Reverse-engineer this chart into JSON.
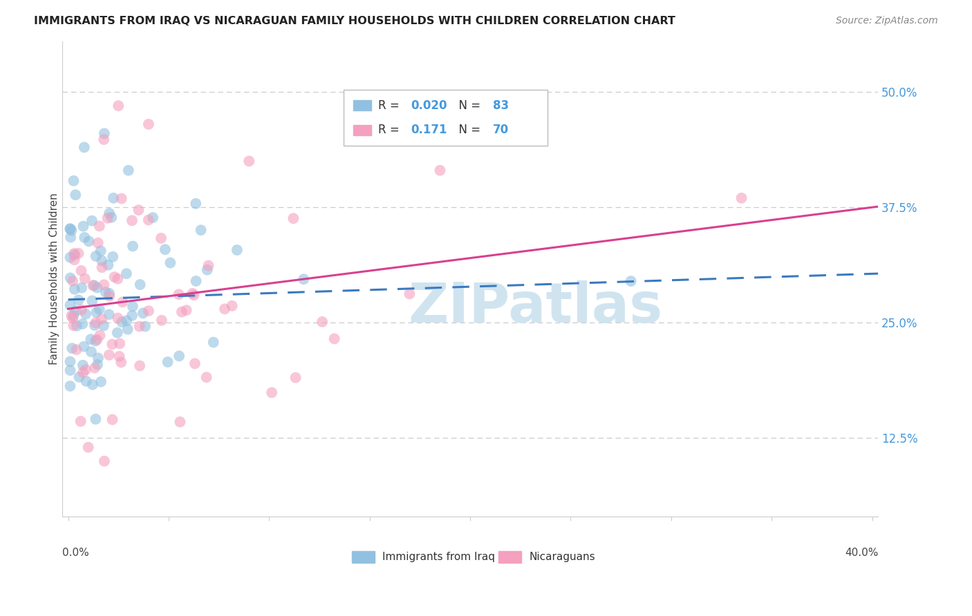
{
  "title": "IMMIGRANTS FROM IRAQ VS NICARAGUAN FAMILY HOUSEHOLDS WITH CHILDREN CORRELATION CHART",
  "source": "Source: ZipAtlas.com",
  "ylabel": "Family Households with Children",
  "ytick_vals": [
    0.125,
    0.25,
    0.375,
    0.5
  ],
  "ytick_labels": [
    "12.5%",
    "25.0%",
    "37.5%",
    "50.0%"
  ],
  "xlim": [
    -0.003,
    0.403
  ],
  "ylim": [
    0.04,
    0.555
  ],
  "legend_label1": "Immigrants from Iraq",
  "legend_label2": "Nicaraguans",
  "color_blue": "#92c0e0",
  "color_pink": "#f4a0be",
  "line_blue": "#3a7abf",
  "line_pink": "#d84090",
  "watermark": "ZIPatlas",
  "watermark_color": "#d0e4f0",
  "seed_iraq": 12,
  "seed_nic": 77,
  "n_iraq": 83,
  "n_nic": 70,
  "R_iraq": 0.02,
  "R_nic": 0.171,
  "background_color": "#ffffff",
  "grid_color": "#cccccc",
  "spine_color": "#cccccc",
  "title_color": "#222222",
  "source_color": "#888888",
  "ylabel_color": "#444444",
  "ytick_color": "#4499dd",
  "xtick_left_label": "0.0%",
  "xtick_right_label": "40.0%"
}
